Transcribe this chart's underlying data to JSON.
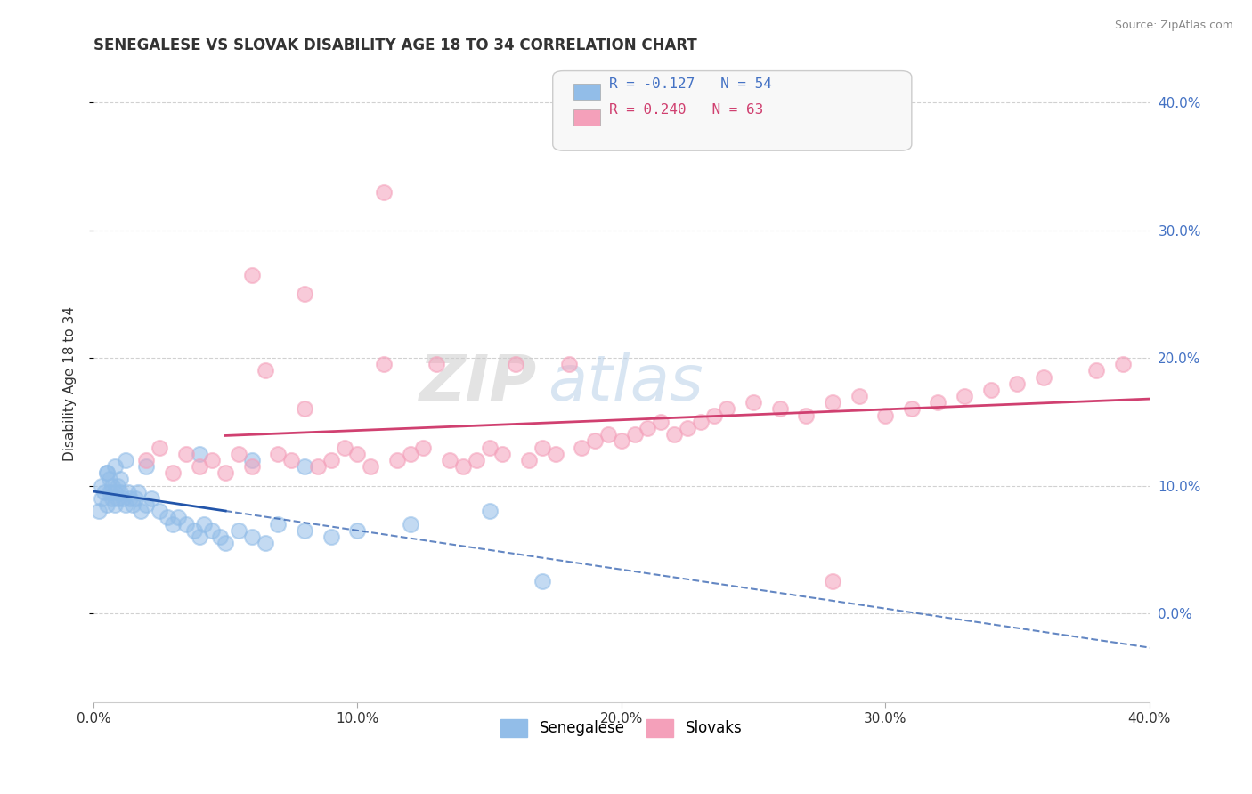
{
  "title": "SENEGALESE VS SLOVAK DISABILITY AGE 18 TO 34 CORRELATION CHART",
  "source": "Source: ZipAtlas.com",
  "ylabel": "Disability Age 18 to 34",
  "xlim": [
    0.0,
    0.4
  ],
  "ylim": [
    -0.07,
    0.43
  ],
  "x_ticks": [
    0.0,
    0.1,
    0.2,
    0.3,
    0.4
  ],
  "y_ticks": [
    0.0,
    0.1,
    0.2,
    0.3,
    0.4
  ],
  "watermark_zip": "ZIP",
  "watermark_atlas": "atlas",
  "blue_scatter_color": "#92bde8",
  "pink_scatter_color": "#f4a0ba",
  "blue_line_color": "#2255aa",
  "pink_line_color": "#d04070",
  "grid_color": "#cccccc",
  "right_axis_color": "#4472c4",
  "legend_r1": "R = -0.127   N = 54",
  "legend_r2": "R = 0.240   N = 63",
  "background_color": "#ffffff",
  "senegalese_x": [
    0.002,
    0.003,
    0.003,
    0.004,
    0.005,
    0.005,
    0.006,
    0.006,
    0.007,
    0.007,
    0.008,
    0.008,
    0.009,
    0.009,
    0.01,
    0.01,
    0.011,
    0.012,
    0.013,
    0.014,
    0.015,
    0.016,
    0.017,
    0.018,
    0.02,
    0.022,
    0.025,
    0.028,
    0.03,
    0.032,
    0.035,
    0.038,
    0.04,
    0.042,
    0.045,
    0.048,
    0.05,
    0.055,
    0.06,
    0.065,
    0.07,
    0.08,
    0.09,
    0.1,
    0.12,
    0.15,
    0.08,
    0.06,
    0.04,
    0.02,
    0.012,
    0.008,
    0.005,
    0.17
  ],
  "senegalese_y": [
    0.08,
    0.09,
    0.1,
    0.095,
    0.085,
    0.11,
    0.095,
    0.105,
    0.09,
    0.1,
    0.095,
    0.085,
    0.09,
    0.1,
    0.095,
    0.105,
    0.09,
    0.085,
    0.095,
    0.09,
    0.085,
    0.09,
    0.095,
    0.08,
    0.085,
    0.09,
    0.08,
    0.075,
    0.07,
    0.075,
    0.07,
    0.065,
    0.06,
    0.07,
    0.065,
    0.06,
    0.055,
    0.065,
    0.06,
    0.055,
    0.07,
    0.065,
    0.06,
    0.065,
    0.07,
    0.08,
    0.115,
    0.12,
    0.125,
    0.115,
    0.12,
    0.115,
    0.11,
    0.025
  ],
  "slovak_x": [
    0.02,
    0.025,
    0.03,
    0.035,
    0.04,
    0.045,
    0.05,
    0.055,
    0.06,
    0.065,
    0.07,
    0.075,
    0.08,
    0.085,
    0.09,
    0.095,
    0.1,
    0.105,
    0.11,
    0.115,
    0.12,
    0.125,
    0.13,
    0.135,
    0.14,
    0.145,
    0.15,
    0.155,
    0.16,
    0.165,
    0.17,
    0.175,
    0.18,
    0.185,
    0.19,
    0.195,
    0.2,
    0.205,
    0.21,
    0.215,
    0.22,
    0.225,
    0.23,
    0.235,
    0.24,
    0.25,
    0.26,
    0.27,
    0.28,
    0.29,
    0.3,
    0.31,
    0.32,
    0.33,
    0.34,
    0.35,
    0.36,
    0.38,
    0.39,
    0.06,
    0.08,
    0.11,
    0.28
  ],
  "slovak_y": [
    0.12,
    0.13,
    0.11,
    0.125,
    0.115,
    0.12,
    0.11,
    0.125,
    0.115,
    0.19,
    0.125,
    0.12,
    0.16,
    0.115,
    0.12,
    0.13,
    0.125,
    0.115,
    0.195,
    0.12,
    0.125,
    0.13,
    0.195,
    0.12,
    0.115,
    0.12,
    0.13,
    0.125,
    0.195,
    0.12,
    0.13,
    0.125,
    0.195,
    0.13,
    0.135,
    0.14,
    0.135,
    0.14,
    0.145,
    0.15,
    0.14,
    0.145,
    0.15,
    0.155,
    0.16,
    0.165,
    0.16,
    0.155,
    0.165,
    0.17,
    0.155,
    0.16,
    0.165,
    0.17,
    0.175,
    0.18,
    0.185,
    0.19,
    0.195,
    0.265,
    0.25,
    0.33,
    0.025
  ]
}
